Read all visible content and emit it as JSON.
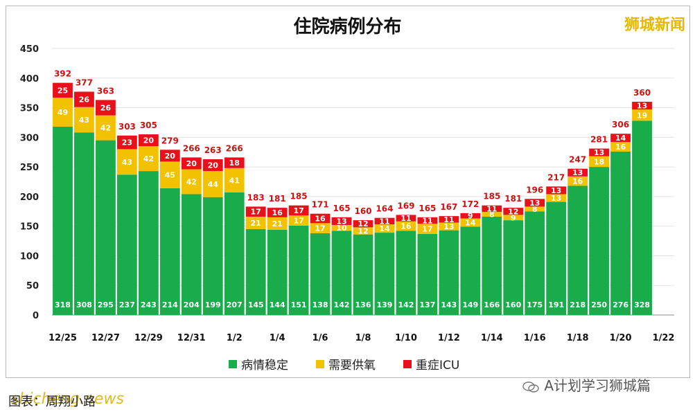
{
  "brand": "狮城新闻",
  "watermark": "A计划学习狮城篇",
  "footer": "图表：周翔小路",
  "site_mark": "shicheng.news",
  "colors": {
    "stable": "#1aab4b",
    "oxygen": "#f2c200",
    "icu": "#e8101a",
    "total_label": "#d01010"
  },
  "chart_data": {
    "type": "bar",
    "stacked": true,
    "title": "住院病例分布",
    "xlabel": "",
    "ylabel": "",
    "ylim": [
      0,
      450
    ],
    "yticks": [
      0,
      50,
      100,
      150,
      200,
      250,
      300,
      350,
      400,
      450
    ],
    "grid": true,
    "legend_position": "bottom",
    "categories": [
      "12/25",
      "12/26",
      "12/27",
      "12/28",
      "12/29",
      "12/30",
      "12/31",
      "1/1",
      "1/2",
      "1/3",
      "1/4",
      "1/5",
      "1/6",
      "1/7",
      "1/8",
      "1/9",
      "1/10",
      "1/11",
      "1/12",
      "1/13",
      "1/14",
      "1/15",
      "1/16",
      "1/17",
      "1/18",
      "1/19",
      "1/20",
      "1/21",
      "1/22"
    ],
    "xtick_labels": [
      "12/25",
      "12/27",
      "12/29",
      "12/31",
      "1/2",
      "1/4",
      "1/6",
      "1/8",
      "1/10",
      "1/12",
      "1/14",
      "1/16",
      "1/18",
      "1/20",
      "1/22"
    ],
    "series": [
      {
        "name": "病情稳定",
        "values": [
          318,
          308,
          295,
          237,
          243,
          214,
          204,
          199,
          207,
          145,
          144,
          151,
          138,
          142,
          136,
          139,
          142,
          137,
          143,
          149,
          166,
          160,
          175,
          191,
          218,
          250,
          276,
          328,
          null
        ]
      },
      {
        "name": "需要供氧",
        "values": [
          49,
          43,
          42,
          43,
          42,
          45,
          42,
          44,
          41,
          21,
          21,
          17,
          17,
          10,
          12,
          14,
          16,
          17,
          13,
          14,
          8,
          9,
          8,
          13,
          16,
          18,
          16,
          19,
          null
        ]
      },
      {
        "name": "重症ICU",
        "values": [
          25,
          26,
          26,
          23,
          20,
          20,
          20,
          20,
          18,
          17,
          16,
          17,
          16,
          13,
          12,
          11,
          11,
          11,
          11,
          9,
          11,
          12,
          13,
          13,
          13,
          13,
          14,
          13,
          null
        ]
      }
    ],
    "totals": [
      392,
      377,
      363,
      303,
      305,
      279,
      266,
      263,
      266,
      183,
      181,
      185,
      171,
      165,
      160,
      164,
      169,
      165,
      167,
      172,
      185,
      181,
      196,
      217,
      247,
      281,
      306,
      360,
      null
    ]
  }
}
